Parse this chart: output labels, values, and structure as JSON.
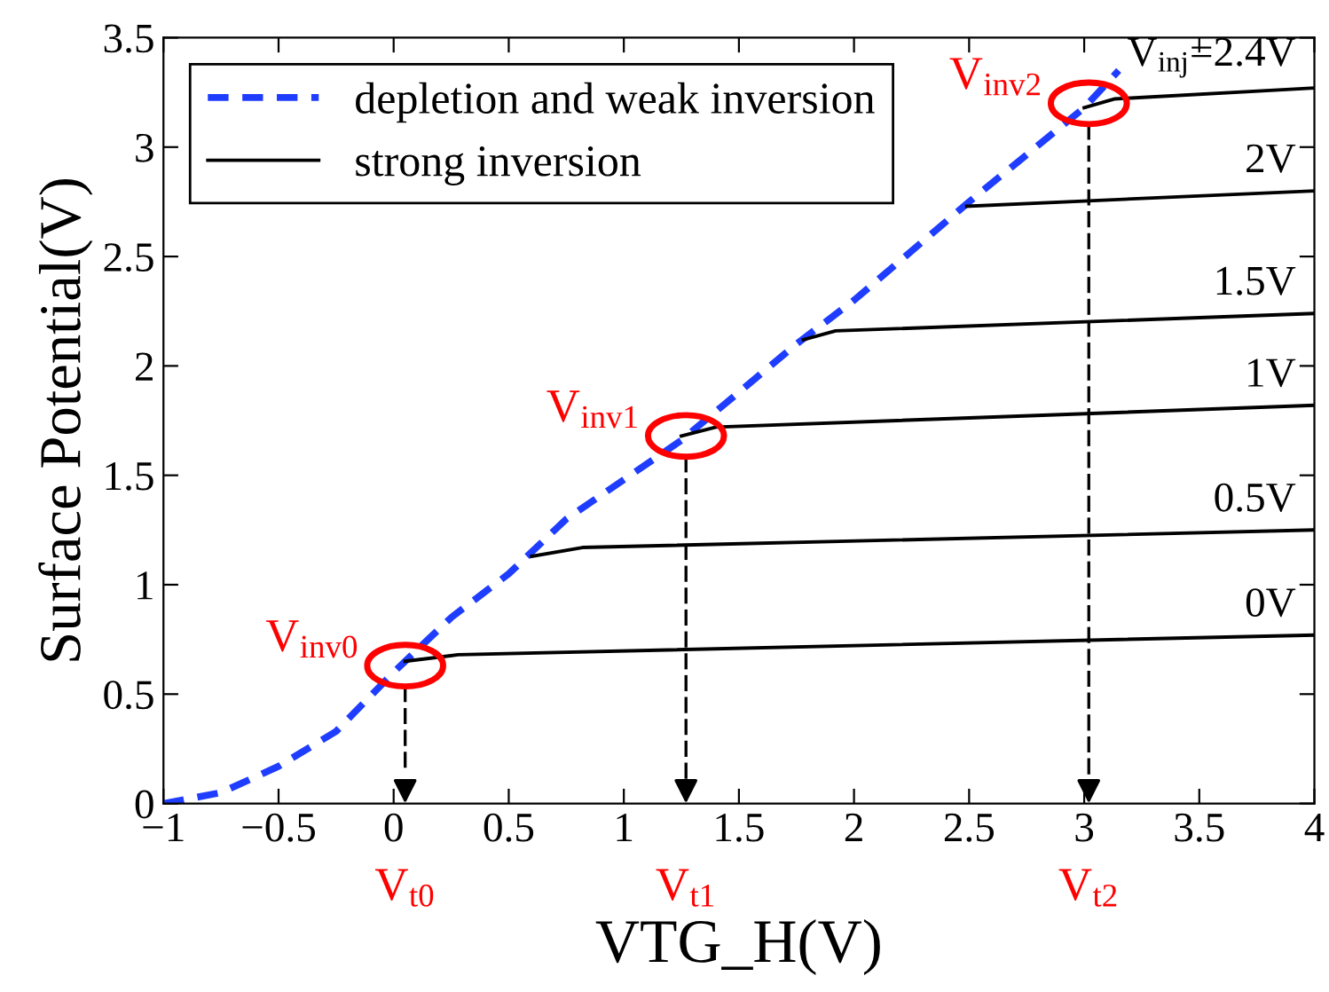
{
  "chart_data": {
    "type": "line",
    "xlabel": "VTG_H(V)",
    "ylabel": "Surface Potential(V)",
    "xlim": [
      -1,
      4
    ],
    "ylim": [
      0,
      3.5
    ],
    "xticks": [
      {
        "value": -1,
        "label": "−1"
      },
      {
        "value": -0.5,
        "label": "−0.5"
      },
      0,
      0.5,
      1,
      1.5,
      2,
      2.5,
      3,
      3.5,
      4
    ],
    "yticks": [
      0,
      0.5,
      1,
      1.5,
      2,
      2.5,
      3,
      3.5
    ],
    "grid": false,
    "legend": "top left",
    "marker": "none",
    "series": [
      {
        "name": "depletion and weak inversion",
        "color": "#1f3dff",
        "line_style": "dashed",
        "x": [
          -1,
          -0.75,
          -0.5,
          -0.25,
          0,
          0.25,
          0.5,
          0.75,
          1,
          1.25,
          1.5,
          1.75,
          2,
          2.5,
          3,
          3.15
        ],
        "values": [
          0,
          0.05,
          0.17,
          0.33,
          0.6,
          0.85,
          1.05,
          1.3,
          1.48,
          1.66,
          1.88,
          2.1,
          2.3,
          2.75,
          3.18,
          3.35
        ]
      },
      {
        "name": "strong inversion",
        "color": "#000000",
        "line_style": "solid",
        "x": [
          0.05,
          0.28,
          4
        ],
        "values": [
          0.65,
          0.68,
          0.77
        ]
      },
      {
        "color": "#000000",
        "line_style": "solid",
        "x": [
          0.6,
          0.82,
          4
        ],
        "values": [
          1.13,
          1.17,
          1.25
        ]
      },
      {
        "color": "#000000",
        "line_style": "solid",
        "x": [
          1.25,
          1.4,
          4
        ],
        "values": [
          1.68,
          1.72,
          1.82
        ]
      },
      {
        "color": "#000000",
        "line_style": "solid",
        "x": [
          1.78,
          1.92,
          4
        ],
        "values": [
          2.12,
          2.16,
          2.24
        ]
      },
      {
        "color": "#000000",
        "line_style": "solid",
        "x": [
          2.49,
          4
        ],
        "values": [
          2.73,
          2.8
        ]
      },
      {
        "color": "#000000",
        "line_style": "solid",
        "x": [
          3.0,
          3.13,
          4
        ],
        "values": [
          3.18,
          3.22,
          3.27
        ]
      }
    ],
    "annotations": [
      "0V",
      "0.5V",
      "1V",
      "1.5V",
      "2V",
      "V$_{inj}$=2.4V",
      {
        "text": "V$_{inv0}$",
        "x": 0.05,
        "y": 0.63
      },
      {
        "text": "V$_{inv1}$",
        "x": 1.27,
        "y": 1.68
      },
      {
        "text": "V$_{inv2}$",
        "x": 3.02,
        "y": 3.2
      },
      "V$_{t0}$",
      "V$_{t1}$",
      "V$_{t2}$"
    ]
  }
}
